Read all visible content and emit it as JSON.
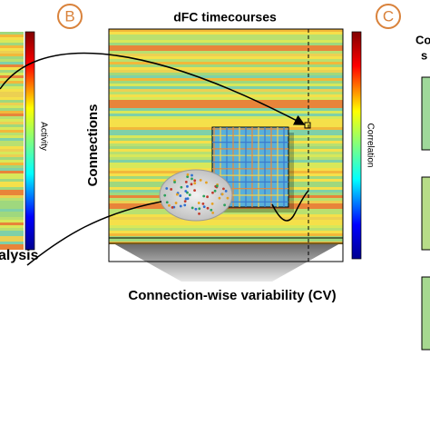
{
  "left_panel": {
    "colorbar_label": "Activity",
    "caption": "alysis"
  },
  "panel_b": {
    "label": "B",
    "title": "dFC timecourses",
    "y_label": "Connections",
    "colorbar_label": "Correlation",
    "x_label": "Connection-wise variability (CV)"
  },
  "panel_c": {
    "label": "C",
    "title_lines": [
      "Co",
      "s"
    ]
  }
}
